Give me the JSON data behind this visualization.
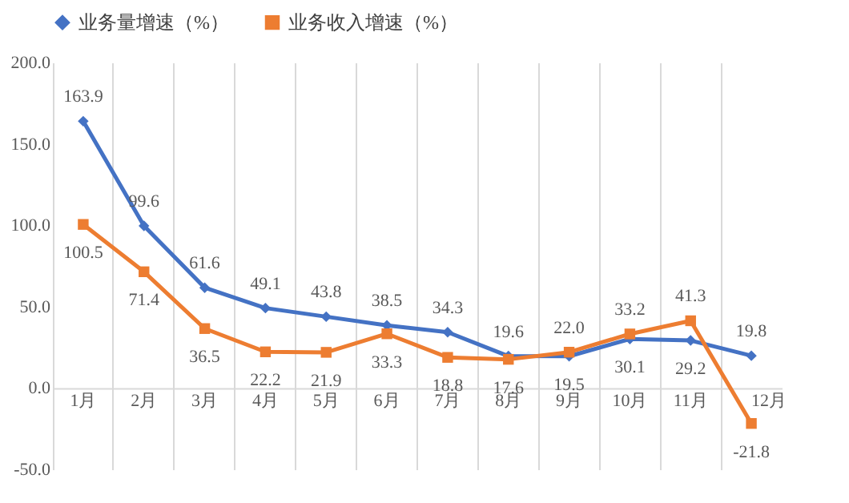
{
  "chart_data": {
    "type": "line",
    "categories": [
      "1月",
      "2月",
      "3月",
      "4月",
      "5月",
      "6月",
      "7月",
      "8月",
      "9月",
      "10月",
      "11月",
      "12月"
    ],
    "series": [
      {
        "name": "业务量增速（%）",
        "color": "#4472c4",
        "marker": "diamond",
        "values": [
          163.9,
          99.6,
          61.6,
          49.1,
          43.8,
          38.5,
          34.3,
          19.6,
          19.5,
          30.1,
          29.2,
          19.8
        ],
        "value_labels": [
          "163.9",
          "99.6",
          "61.6",
          "49.1",
          "43.8",
          "38.5",
          "34.3",
          "19.6",
          "19.5",
          "30.1",
          "29.2",
          "19.8"
        ]
      },
      {
        "name": "业务收入增速（%）",
        "color": "#ed7d31",
        "marker": "square",
        "values": [
          100.5,
          71.4,
          36.5,
          22.2,
          21.9,
          33.3,
          18.8,
          17.6,
          22.0,
          33.2,
          41.3,
          -21.8
        ],
        "value_labels": [
          "100.5",
          "71.4",
          "36.5",
          "22.2",
          "21.9",
          "33.3",
          "18.8",
          "17.6",
          "22.0",
          "33.2",
          "41.3",
          "-21.8"
        ]
      }
    ],
    "ylim": [
      -50,
      200
    ],
    "yticks": [
      {
        "value": -50,
        "label": "-50.0"
      },
      {
        "value": 0,
        "label": "0.0"
      },
      {
        "value": 50,
        "label": "50.0"
      },
      {
        "value": 100,
        "label": "100.0"
      },
      {
        "value": 150,
        "label": "150.0"
      },
      {
        "value": 200,
        "label": "200.0"
      }
    ],
    "grid": "x",
    "legend": "top",
    "data_labels": true,
    "line_style": "solid"
  }
}
